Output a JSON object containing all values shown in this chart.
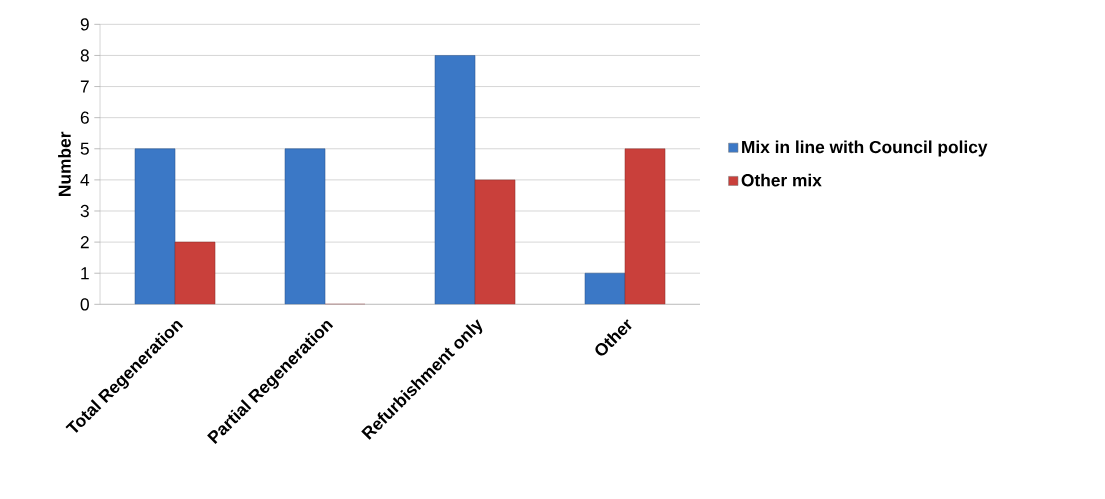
{
  "chart_data": {
    "type": "bar",
    "ylabel": "Number",
    "categories": [
      "Total Regeneration",
      "Partial Regeneration",
      "Refurbishment only",
      "Other"
    ],
    "series": [
      {
        "name": "Mix in line with Council policy",
        "color": "#3b78c6",
        "values": [
          5,
          5,
          8,
          1
        ]
      },
      {
        "name": "Other mix",
        "color": "#c9403b",
        "values": [
          2,
          0,
          4,
          5
        ]
      }
    ],
    "ylim": [
      0,
      9
    ],
    "yticks": [
      0,
      1,
      2,
      3,
      4,
      5,
      6,
      7,
      8,
      9
    ],
    "grid": "y",
    "legend": "right"
  }
}
